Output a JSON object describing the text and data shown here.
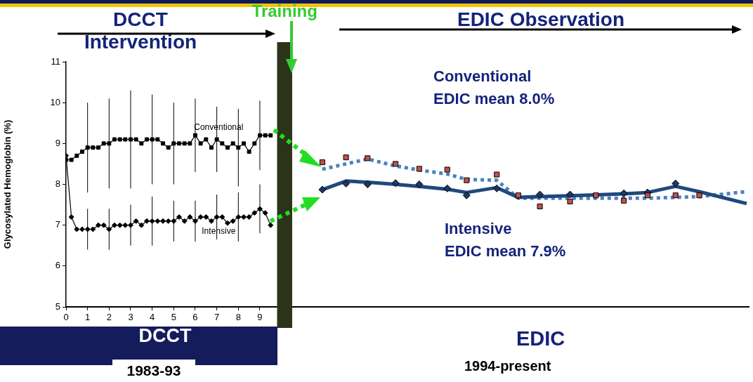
{
  "chart_data": {
    "type": "line",
    "title": "DCCT Intervention",
    "subtitle": "EDIC Observation",
    "ylabel": "Glycosylated Hemoglobin (%)",
    "xlim": [
      0,
      31.7
    ],
    "xticks": [
      0,
      1,
      2,
      3,
      4,
      5,
      6,
      7,
      8,
      9
    ],
    "ylim": [
      5,
      11
    ],
    "yticks": [
      5,
      6,
      7,
      8,
      9,
      10,
      11
    ],
    "grid": false,
    "bands": [
      {
        "axis": "x",
        "from": 9.8,
        "to": 10.5,
        "label": "Training",
        "color": "#2b3319"
      }
    ],
    "annotations": [
      "DCCT",
      "1983-93",
      "Conventional",
      "EDIC mean 8.0%",
      "Intensive",
      "EDIC mean 7.9%",
      "EDIC",
      "1994-present"
    ],
    "series": [
      {
        "name": "Conventional",
        "color": "#000000",
        "marker": "square",
        "x": [
          0,
          0.25,
          0.5,
          0.75,
          1,
          1.25,
          1.5,
          1.75,
          2,
          2.25,
          2.5,
          2.75,
          3,
          3.25,
          3.5,
          3.75,
          4,
          4.25,
          4.5,
          4.75,
          5,
          5.25,
          5.5,
          5.75,
          6,
          6.25,
          6.5,
          6.75,
          7,
          7.25,
          7.5,
          7.75,
          8,
          8.25,
          8.5,
          8.75,
          9,
          9.25,
          9.5
        ],
        "values": [
          8.6,
          8.6,
          8.7,
          8.8,
          8.9,
          8.9,
          8.9,
          9.0,
          9.0,
          9.1,
          9.1,
          9.1,
          9.1,
          9.1,
          9.0,
          9.1,
          9.1,
          9.1,
          9.0,
          8.9,
          9.0,
          9.0,
          9.0,
          9.0,
          9.2,
          9.0,
          9.1,
          8.9,
          9.1,
          9.0,
          8.9,
          9.0,
          8.9,
          9.0,
          8.8,
          9.0,
          9.2,
          9.2,
          9.2
        ],
        "errors": [
          null,
          null,
          null,
          null,
          1.1,
          null,
          null,
          null,
          1.1,
          null,
          null,
          null,
          1.2,
          null,
          null,
          null,
          1.1,
          null,
          null,
          null,
          1.0,
          null,
          null,
          null,
          0.9,
          null,
          null,
          null,
          0.8,
          null,
          null,
          null,
          0.95,
          null,
          null,
          null,
          0.85,
          null,
          null
        ]
      },
      {
        "name": "Intensive",
        "color": "#000000",
        "marker": "diamond",
        "x": [
          0,
          0.25,
          0.5,
          0.75,
          1,
          1.25,
          1.5,
          1.75,
          2,
          2.25,
          2.5,
          2.75,
          3,
          3.25,
          3.5,
          3.75,
          4,
          4.25,
          4.5,
          4.75,
          5,
          5.25,
          5.5,
          5.75,
          6,
          6.25,
          6.5,
          6.75,
          7,
          7.25,
          7.5,
          7.75,
          8,
          8.25,
          8.5,
          8.75,
          9,
          9.25,
          9.5
        ],
        "values": [
          8.7,
          7.2,
          6.9,
          6.9,
          6.9,
          6.9,
          7.0,
          7.0,
          6.9,
          7.0,
          7.0,
          7.0,
          7.0,
          7.1,
          7.0,
          7.1,
          7.1,
          7.1,
          7.1,
          7.1,
          7.1,
          7.2,
          7.1,
          7.2,
          7.1,
          7.2,
          7.2,
          7.1,
          7.2,
          7.2,
          7.05,
          7.1,
          7.2,
          7.2,
          7.2,
          7.3,
          7.4,
          7.3,
          7.0
        ],
        "errors": [
          null,
          null,
          null,
          null,
          0.5,
          null,
          null,
          null,
          0.5,
          null,
          null,
          null,
          0.5,
          null,
          null,
          null,
          0.6,
          null,
          null,
          null,
          0.5,
          null,
          null,
          null,
          0.5,
          null,
          null,
          null,
          0.55,
          null,
          null,
          null,
          0.6,
          null,
          null,
          null,
          0.6,
          null,
          null
        ]
      },
      {
        "type": "line",
        "color": "#1f497d",
        "line_style": "solid",
        "marker": "none",
        "x": [
          11.9,
          13.0,
          14.0,
          15.3,
          16.4,
          17.7,
          18.6,
          20.0,
          21.0,
          22.0,
          23.4,
          24.6,
          25.9,
          27.0,
          28.3,
          29.4,
          31.6
        ],
        "values": [
          7.87,
          8.08,
          8.05,
          8.0,
          7.95,
          7.88,
          7.8,
          7.92,
          7.68,
          7.7,
          7.72,
          7.74,
          7.77,
          7.8,
          7.95,
          7.82,
          7.53
        ]
      },
      {
        "type": "line",
        "color": "#4f81bd",
        "line_style": "dotted",
        "marker": "none",
        "x": [
          11.9,
          13.0,
          14.0,
          15.3,
          16.4,
          17.7,
          18.6,
          20.0,
          21.0,
          22.0,
          23.4,
          24.6,
          25.9,
          27.0,
          28.3,
          29.4,
          31.6
        ],
        "values": [
          8.37,
          8.5,
          8.62,
          8.45,
          8.35,
          8.25,
          8.12,
          8.1,
          7.66,
          7.66,
          7.66,
          7.66,
          7.66,
          7.66,
          7.68,
          7.7,
          7.82
        ]
      },
      {
        "type": "scatter",
        "color": "#c0504d",
        "marker": "square",
        "x": [
          11.9,
          13.0,
          14.0,
          15.3,
          16.4,
          17.7,
          18.6,
          20.0,
          21.0,
          22.0,
          23.4,
          24.6,
          25.9,
          27.0,
          28.3,
          29.4
        ],
        "values": [
          8.54,
          8.66,
          8.64,
          8.5,
          8.38,
          8.36,
          8.1,
          8.24,
          7.73,
          7.46,
          7.58,
          7.73,
          7.6,
          7.73,
          7.73,
          7.73
        ]
      },
      {
        "type": "scatter",
        "color": "#1f3864",
        "marker": "diamond",
        "x": [
          11.9,
          13.0,
          14.0,
          15.3,
          16.4,
          17.7,
          18.6,
          20.0,
          21.0,
          22.0,
          23.4,
          24.6,
          25.9,
          27.0,
          28.3
        ],
        "values": [
          7.87,
          8.02,
          8.0,
          8.03,
          8.0,
          7.9,
          7.73,
          7.9,
          null,
          7.75,
          7.75,
          null,
          7.78,
          7.8,
          8.02
        ]
      }
    ]
  }
}
